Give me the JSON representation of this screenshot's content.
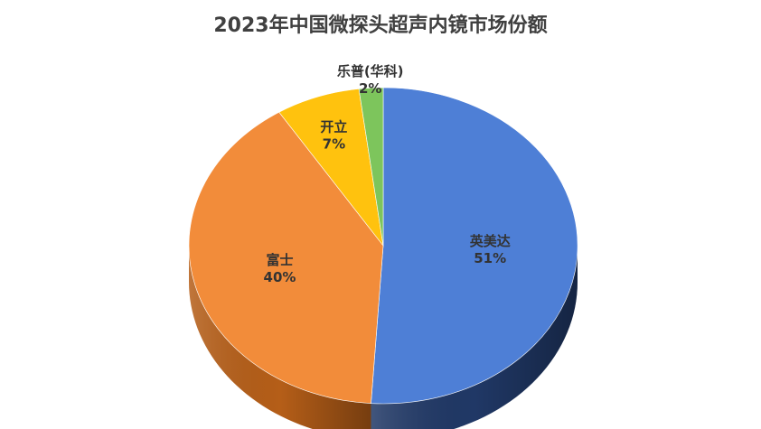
{
  "chart_data": {
    "type": "pie",
    "title": "2023年中国微探头超声内镜市场份额",
    "slices": [
      {
        "label": "英美达",
        "value": 51,
        "value_label": "51%",
        "color": "#4E7FD6",
        "dark_color": "#203866"
      },
      {
        "label": "富士",
        "value": 40,
        "value_label": "40%",
        "color": "#F28C3A",
        "dark_color": "#B55E18"
      },
      {
        "label": "开立",
        "value": 7,
        "value_label": "7%",
        "color": "#FFC20E",
        "dark_color": "#B58900"
      },
      {
        "label": "乐普(华科)",
        "value": 2,
        "value_label": "2%",
        "color": "#7DC55C",
        "dark_color": "#4E8A35"
      }
    ],
    "style": "3d-pie",
    "legend": "none"
  }
}
